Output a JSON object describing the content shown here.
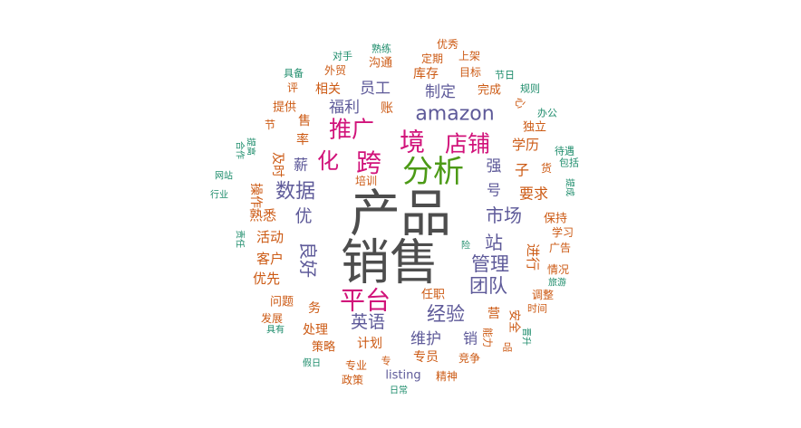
{
  "chart_data": {
    "type": "wordcloud",
    "colors": {
      "dark": "#4d4d4d",
      "green": "#4c9a16",
      "magenta": "#d1137a",
      "purple": "#5e5a99",
      "orange": "#cc5a14",
      "teal": "#1d8c6b"
    },
    "words": [
      {
        "text": "产品",
        "weight": 100,
        "color": "dark"
      },
      {
        "text": "销售",
        "weight": 98,
        "color": "dark"
      },
      {
        "text": "分析",
        "weight": 55,
        "color": "green"
      },
      {
        "text": "跨",
        "weight": 50,
        "color": "magenta"
      },
      {
        "text": "境",
        "weight": 50,
        "color": "magenta"
      },
      {
        "text": "平台",
        "weight": 48,
        "color": "magenta"
      },
      {
        "text": "店铺",
        "weight": 47,
        "color": "magenta"
      },
      {
        "text": "推广",
        "weight": 46,
        "color": "magenta"
      },
      {
        "text": "化",
        "weight": 45,
        "color": "magenta"
      },
      {
        "text": "amazon",
        "weight": 44,
        "color": "purple"
      },
      {
        "text": "数据",
        "weight": 40,
        "color": "purple"
      },
      {
        "text": "经验",
        "weight": 39,
        "color": "purple"
      },
      {
        "text": "管理",
        "weight": 39,
        "color": "purple"
      },
      {
        "text": "团队",
        "weight": 38,
        "color": "purple"
      },
      {
        "text": "市场",
        "weight": 38,
        "color": "purple"
      },
      {
        "text": "良好",
        "weight": 38,
        "color": "purple"
      },
      {
        "text": "站",
        "weight": 38,
        "color": "purple"
      },
      {
        "text": "英语",
        "weight": 36,
        "color": "purple"
      },
      {
        "text": "维护",
        "weight": 35,
        "color": "purple"
      },
      {
        "text": "优",
        "weight": 36,
        "color": "purple"
      },
      {
        "text": "福利",
        "weight": 34,
        "color": "purple"
      },
      {
        "text": "员工",
        "weight": 34,
        "color": "purple"
      },
      {
        "text": "制定",
        "weight": 34,
        "color": "purple"
      },
      {
        "text": "薪",
        "weight": 34,
        "color": "purple"
      },
      {
        "text": "强",
        "weight": 34,
        "color": "purple"
      },
      {
        "text": "号",
        "weight": 34,
        "color": "purple"
      },
      {
        "text": "销",
        "weight": 33,
        "color": "purple"
      },
      {
        "text": "要求",
        "weight": 32,
        "color": "orange"
      },
      {
        "text": "子",
        "weight": 32,
        "color": "orange"
      },
      {
        "text": "学历",
        "weight": 30,
        "color": "orange"
      },
      {
        "text": "进行",
        "weight": 30,
        "color": "orange"
      },
      {
        "text": "活动",
        "weight": 30,
        "color": "orange"
      },
      {
        "text": "熟悉",
        "weight": 30,
        "color": "orange"
      },
      {
        "text": "客户",
        "weight": 30,
        "color": "orange"
      },
      {
        "text": "优先",
        "weight": 30,
        "color": "orange"
      },
      {
        "text": "操作",
        "weight": 29,
        "color": "orange"
      },
      {
        "text": "及时",
        "weight": 29,
        "color": "orange"
      },
      {
        "text": "率",
        "weight": 29,
        "color": "orange"
      },
      {
        "text": "售",
        "weight": 29,
        "color": "orange"
      },
      {
        "text": "务",
        "weight": 29,
        "color": "orange"
      },
      {
        "text": "处理",
        "weight": 29,
        "color": "orange"
      },
      {
        "text": "计划",
        "weight": 29,
        "color": "orange"
      },
      {
        "text": "专员",
        "weight": 29,
        "color": "orange"
      },
      {
        "text": "营",
        "weight": 29,
        "color": "orange"
      },
      {
        "text": "库存",
        "weight": 29,
        "color": "orange"
      },
      {
        "text": "相关",
        "weight": 28,
        "color": "orange"
      },
      {
        "text": "账",
        "weight": 28,
        "color": "orange"
      },
      {
        "text": "问题",
        "weight": 27,
        "color": "orange"
      },
      {
        "text": "策略",
        "weight": 27,
        "color": "orange"
      },
      {
        "text": "安全",
        "weight": 27,
        "color": "orange"
      },
      {
        "text": "完成",
        "weight": 26,
        "color": "orange"
      },
      {
        "text": "沟通",
        "weight": 26,
        "color": "orange"
      },
      {
        "text": "提供",
        "weight": 26,
        "color": "orange"
      },
      {
        "text": "保持",
        "weight": 26,
        "color": "orange"
      },
      {
        "text": "独立",
        "weight": 26,
        "color": "orange"
      },
      {
        "text": "任职",
        "weight": 26,
        "color": "orange"
      },
      {
        "text": "listing",
        "weight": 26,
        "color": "purple"
      },
      {
        "text": "外贸",
        "weight": 25,
        "color": "orange"
      },
      {
        "text": "培训",
        "weight": 25,
        "color": "orange"
      },
      {
        "text": "竞争",
        "weight": 25,
        "color": "orange"
      },
      {
        "text": "专业",
        "weight": 25,
        "color": "orange"
      },
      {
        "text": "调整",
        "weight": 25,
        "color": "orange"
      },
      {
        "text": "情况",
        "weight": 25,
        "color": "orange"
      },
      {
        "text": "定期",
        "weight": 24,
        "color": "orange"
      },
      {
        "text": "目标",
        "weight": 24,
        "color": "orange"
      },
      {
        "text": "上架",
        "weight": 24,
        "color": "orange"
      },
      {
        "text": "优秀",
        "weight": 24,
        "color": "orange"
      },
      {
        "text": "广告",
        "weight": 24,
        "color": "orange"
      },
      {
        "text": "学习",
        "weight": 24,
        "color": "orange"
      },
      {
        "text": "发展",
        "weight": 24,
        "color": "orange"
      },
      {
        "text": "精神",
        "weight": 24,
        "color": "orange"
      },
      {
        "text": "政策",
        "weight": 24,
        "color": "orange"
      },
      {
        "text": "货",
        "weight": 24,
        "color": "orange"
      },
      {
        "text": "节",
        "weight": 24,
        "color": "orange"
      },
      {
        "text": "评",
        "weight": 24,
        "color": "orange"
      },
      {
        "text": "心",
        "weight": 24,
        "color": "orange"
      },
      {
        "text": "时间",
        "weight": 23,
        "color": "orange"
      },
      {
        "text": "品",
        "weight": 23,
        "color": "orange"
      },
      {
        "text": "专",
        "weight": 23,
        "color": "orange"
      },
      {
        "text": "能力",
        "weight": 23,
        "color": "orange"
      },
      {
        "text": "熟练",
        "weight": 22,
        "color": "teal"
      },
      {
        "text": "对手",
        "weight": 22,
        "color": "teal"
      },
      {
        "text": "具备",
        "weight": 22,
        "color": "teal"
      },
      {
        "text": "节日",
        "weight": 22,
        "color": "teal"
      },
      {
        "text": "规则",
        "weight": 22,
        "color": "teal"
      },
      {
        "text": "办公",
        "weight": 22,
        "color": "teal"
      },
      {
        "text": "待遇",
        "weight": 22,
        "color": "teal"
      },
      {
        "text": "包括",
        "weight": 22,
        "color": "teal"
      },
      {
        "text": "提成",
        "weight": 22,
        "color": "teal"
      },
      {
        "text": "合作",
        "weight": 22,
        "color": "teal"
      },
      {
        "text": "提高",
        "weight": 22,
        "color": "teal"
      },
      {
        "text": "网站",
        "weight": 22,
        "color": "teal"
      },
      {
        "text": "行业",
        "weight": 22,
        "color": "teal"
      },
      {
        "text": "责任",
        "weight": 22,
        "color": "teal"
      },
      {
        "text": "险",
        "weight": 22,
        "color": "teal"
      },
      {
        "text": "旅游",
        "weight": 22,
        "color": "teal"
      },
      {
        "text": "具有",
        "weight": 22,
        "color": "teal"
      },
      {
        "text": "晋升",
        "weight": 22,
        "color": "teal"
      },
      {
        "text": "假日",
        "weight": 22,
        "color": "teal"
      },
      {
        "text": "日常",
        "weight": 22,
        "color": "teal"
      }
    ]
  }
}
